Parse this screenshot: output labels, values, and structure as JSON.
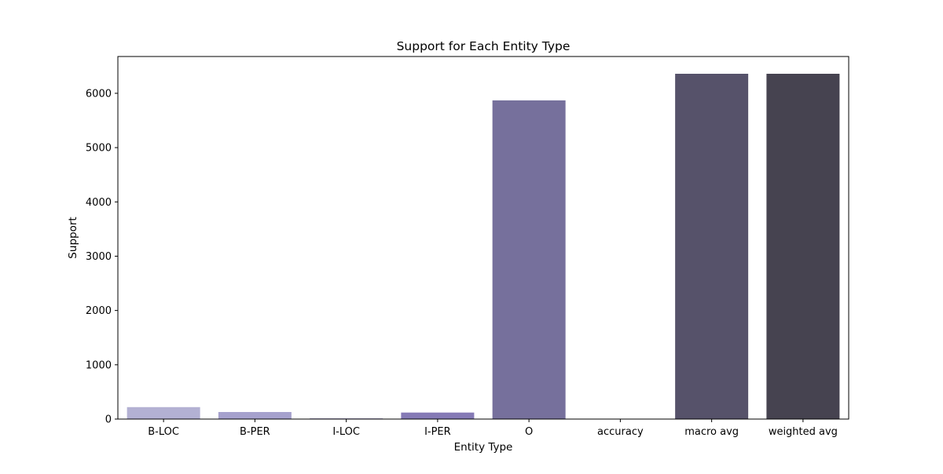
{
  "chart_data": {
    "type": "bar",
    "title": "Support for Each Entity Type",
    "xlabel": "Entity Type",
    "ylabel": "Support",
    "categories": [
      "B-LOC",
      "B-PER",
      "I-LOC",
      "I-PER",
      "O",
      "accuracy",
      "macro avg",
      "weighted avg"
    ],
    "values": [
      220,
      130,
      12,
      120,
      5870,
      0,
      6360,
      6360
    ],
    "colors": [
      "#b3b1d3",
      "#a6a1cd",
      "#8e87bb",
      "#857ab5",
      "#76709c",
      "#6a6288",
      "#56526a",
      "#464350"
    ],
    "ylim": [
      0,
      6678
    ],
    "yticks": [
      0,
      1000,
      2000,
      3000,
      4000,
      5000,
      6000
    ],
    "grid": false,
    "legend": false
  }
}
